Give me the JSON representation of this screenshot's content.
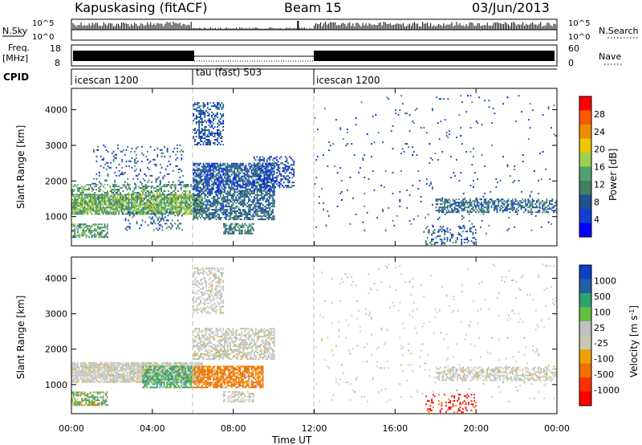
{
  "header": {
    "station": "Kapuskasing (fitACF)",
    "beam": "Beam 15",
    "date": "03/Jun/2013"
  },
  "strips": {
    "nsky_label": "N.Sky",
    "nsky_ticks": [
      "10^5",
      "10^0"
    ],
    "nsearch_label": "N.Search",
    "nsearch_ticks": [
      "10^5",
      "10^0"
    ],
    "freq_label_line1": "Freq.",
    "freq_label_line2": "[MHz]",
    "freq_ticks": [
      "18",
      "8"
    ],
    "nave_label": "Nave",
    "nave_ticks": [
      "60",
      "0"
    ],
    "cpid_label": "CPID",
    "cpid_segments": [
      {
        "label": "icescan 1200",
        "start_h": 0,
        "end_h": 6
      },
      {
        "label": "tau (fast) 503",
        "start_h": 6,
        "end_h": 12
      },
      {
        "label": "icescan 1200",
        "start_h": 12,
        "end_h": 24
      }
    ]
  },
  "panels": {
    "power_ylabel": "Slant Range [km]",
    "velocity_ylabel": "Slant Range [km]",
    "range_ticks": [
      "4000",
      "3000",
      "2000",
      "1000"
    ],
    "time_ticks": [
      "00:00",
      "04:00",
      "08:00",
      "12:00",
      "16:00",
      "20:00",
      "00:00"
    ],
    "xlabel": "Time UT"
  },
  "colorbars": {
    "power": {
      "label": "Power [dB]",
      "ticks": [
        "28",
        "24",
        "20",
        "16",
        "12",
        "8",
        "4"
      ],
      "colors": [
        "#ff0000",
        "#ff5a00",
        "#f08c00",
        "#f0c800",
        "#a0d050",
        "#50a070",
        "#408060",
        "#205090",
        "#1040d0",
        "#0000ff"
      ]
    },
    "velocity": {
      "label": "Velocity [m s",
      "label_sup": "-1",
      "label_end": "]",
      "ticks": [
        "1000",
        "500",
        "100",
        "25",
        "-25",
        "-100",
        "-500",
        "-1000"
      ],
      "colors": [
        "#1040c0",
        "#2060a0",
        "#30a070",
        "#60c040",
        "#c0c0c0",
        "#c8c8b0",
        "#f0a000",
        "#f07000",
        "#ff3000",
        "#ff0000"
      ]
    }
  },
  "chart_data": [
    {
      "type": "heatmap",
      "title": "Kapuskasing (fitACF)",
      "panel": "Power",
      "xlabel": "Time UT",
      "ylabel": "Slant Range [km]",
      "xlim_hours": [
        0,
        24
      ],
      "ylim_km": [
        180,
        4600
      ],
      "colorbar": "Power [dB]",
      "color_range": [
        0,
        30
      ],
      "scatter_regions": [
        {
          "t0": 0.0,
          "t1": 6.5,
          "r0": 1050,
          "r1": 1600,
          "value_db": 14,
          "density": 0.85
        },
        {
          "t0": 0.0,
          "t1": 6.0,
          "r0": 1600,
          "r1": 1900,
          "value_db": 12,
          "density": 0.45
        },
        {
          "t0": 0.0,
          "t1": 1.8,
          "r0": 400,
          "r1": 800,
          "value_db": 12,
          "density": 0.6
        },
        {
          "t0": 1.0,
          "t1": 5.5,
          "r0": 1900,
          "r1": 3000,
          "value_db": 6,
          "density": 0.1
        },
        {
          "t0": 2.5,
          "t1": 5.5,
          "r0": 600,
          "r1": 1100,
          "value_db": 6,
          "density": 0.2
        },
        {
          "t0": 6.0,
          "t1": 10.0,
          "r0": 1700,
          "r1": 2500,
          "value_db": 6,
          "density": 0.7
        },
        {
          "t0": 6.0,
          "t1": 10.0,
          "r0": 900,
          "r1": 1700,
          "value_db": 8,
          "density": 0.65
        },
        {
          "t0": 6.0,
          "t1": 7.5,
          "r0": 3000,
          "r1": 4200,
          "value_db": 6,
          "density": 0.45
        },
        {
          "t0": 7.5,
          "t1": 9.0,
          "r0": 500,
          "r1": 800,
          "value_db": 10,
          "density": 0.6
        },
        {
          "t0": 9.0,
          "t1": 11.0,
          "r0": 1800,
          "r1": 2700,
          "value_db": 5,
          "density": 0.4
        },
        {
          "t0": 18.0,
          "t1": 24.0,
          "r0": 1100,
          "r1": 1500,
          "value_db": 8,
          "density": 0.55
        },
        {
          "t0": 17.5,
          "t1": 20.0,
          "r0": 200,
          "r1": 700,
          "value_db": 6,
          "density": 0.25
        },
        {
          "t0": 12.0,
          "t1": 24.0,
          "r0": 500,
          "r1": 4400,
          "value_db": 6,
          "density": 0.02
        }
      ]
    },
    {
      "type": "heatmap",
      "title": "Kapuskasing (fitACF)",
      "panel": "Velocity",
      "xlabel": "Time UT",
      "ylabel": "Slant Range [km]",
      "xlim_hours": [
        0,
        24
      ],
      "ylim_km": [
        180,
        4600
      ],
      "colorbar": "Velocity [m s-1]",
      "color_range": [
        -1000,
        1000
      ],
      "scatter_regions": [
        {
          "t0": 0.0,
          "t1": 6.5,
          "r0": 1050,
          "r1": 1600,
          "value_ms": 0,
          "density": 0.85
        },
        {
          "t0": 0.0,
          "t1": 1.8,
          "r0": 400,
          "r1": 800,
          "value_ms": 60,
          "density": 0.6
        },
        {
          "t0": 3.5,
          "t1": 6.0,
          "r0": 900,
          "r1": 1500,
          "value_ms": 150,
          "density": 0.7
        },
        {
          "t0": 6.0,
          "t1": 9.5,
          "r0": 900,
          "r1": 1500,
          "value_ms": -200,
          "density": 0.75
        },
        {
          "t0": 6.0,
          "t1": 10.0,
          "r0": 1700,
          "r1": 2600,
          "value_ms": 0,
          "density": 0.6
        },
        {
          "t0": 6.0,
          "t1": 7.5,
          "r0": 3000,
          "r1": 4300,
          "value_ms": 0,
          "density": 0.45
        },
        {
          "t0": 7.5,
          "t1": 9.0,
          "r0": 500,
          "r1": 800,
          "value_ms": 0,
          "density": 0.5
        },
        {
          "t0": 18.0,
          "t1": 24.0,
          "r0": 1100,
          "r1": 1500,
          "value_ms": 0,
          "density": 0.5
        },
        {
          "t0": 17.5,
          "t1": 20.0,
          "r0": 200,
          "r1": 700,
          "value_ms": -600,
          "density": 0.2
        },
        {
          "t0": 12.0,
          "t1": 24.0,
          "r0": 500,
          "r1": 4400,
          "value_ms": 0,
          "density": 0.02
        }
      ]
    }
  ]
}
